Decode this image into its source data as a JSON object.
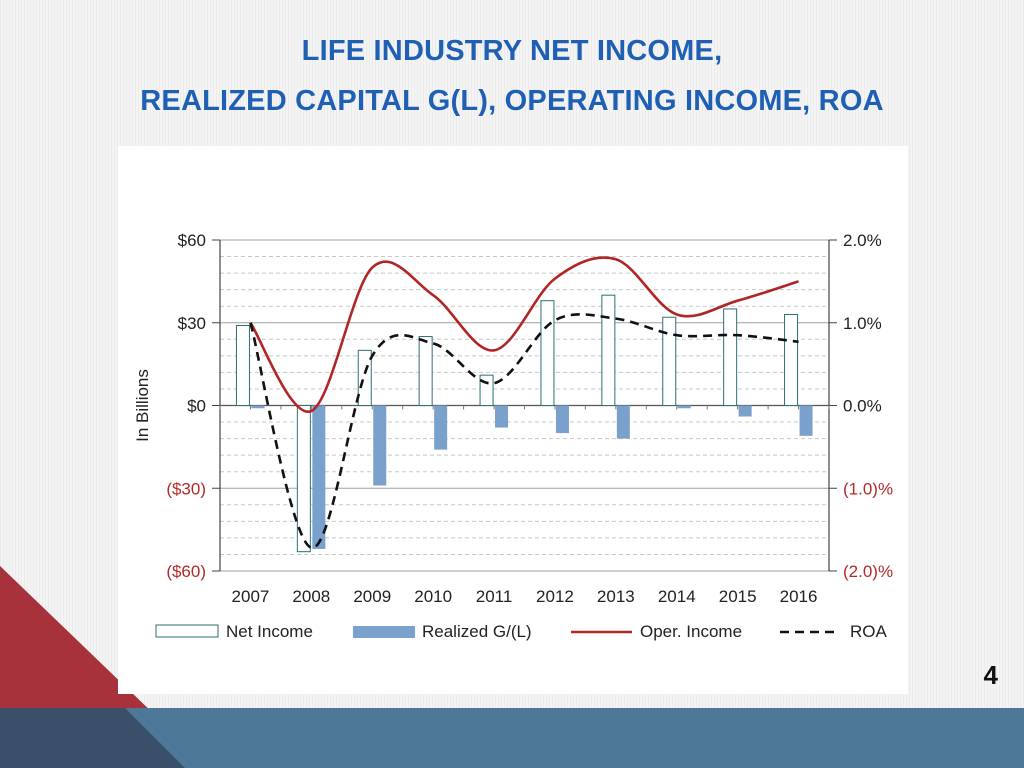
{
  "slide": {
    "title_line1": "LIFE INDUSTRY NET INCOME,",
    "title_line2": "REALIZED CAPITAL G(L), OPERATING INCOME, ROA",
    "page_number": "4"
  },
  "colors": {
    "title": "#1f5fb4",
    "net_income_edge": "#2e6f74",
    "realized_fill": "#7aa0cc",
    "oper_income": "#b22525",
    "roa": "#111111",
    "negative_label": "#b22a2a",
    "bottom_bar": "#4e7898",
    "corner_red": "#a7323b",
    "corner_blue": "#355376"
  },
  "chart_data": {
    "type": "bar",
    "categories": [
      "2007",
      "2008",
      "2009",
      "2010",
      "2011",
      "2012",
      "2013",
      "2014",
      "2015",
      "2016"
    ],
    "ylabel": "In Billions",
    "ylim": [
      -60,
      60
    ],
    "y2lim": [
      -2,
      2
    ],
    "yticks": [
      "$60",
      "$30",
      "$0",
      "($30)",
      "($60)"
    ],
    "y2ticks": [
      "2.0%",
      "1.0%",
      "0.0%",
      "(1.0)%",
      "(2.0)%"
    ],
    "grid": true,
    "legend_position": "bottom",
    "series": [
      {
        "name": "Net Income",
        "type": "bar",
        "axis": "left",
        "values": [
          29,
          -53,
          20,
          25,
          11,
          38,
          40,
          32,
          35,
          33
        ]
      },
      {
        "name": "Realized G/(L)",
        "type": "bar",
        "axis": "left",
        "values": [
          -1,
          -52,
          -29,
          -16,
          -8,
          -10,
          -12,
          -1,
          -4,
          -11
        ]
      },
      {
        "name": "Oper. Income",
        "type": "line",
        "axis": "left",
        "values": [
          30,
          -2,
          50,
          40,
          20,
          46,
          53,
          33,
          38,
          45
        ]
      },
      {
        "name": "ROA",
        "type": "line",
        "style": "dashed",
        "axis": "right",
        "values": [
          1.0,
          -1.72,
          0.6,
          0.75,
          0.27,
          1.03,
          1.05,
          0.85,
          0.85,
          0.77
        ]
      }
    ]
  }
}
